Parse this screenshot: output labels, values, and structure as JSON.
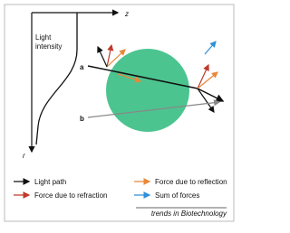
{
  "axes": {
    "z": "z",
    "r": "r"
  },
  "intensity_label": "Light intensity",
  "rays": {
    "a": "a",
    "b": "b"
  },
  "legend": [
    "Light path",
    "Force due to reflection",
    "Force due to refraction",
    "Sum of forces"
  ],
  "footer": "trends in Biotechnology"
}
